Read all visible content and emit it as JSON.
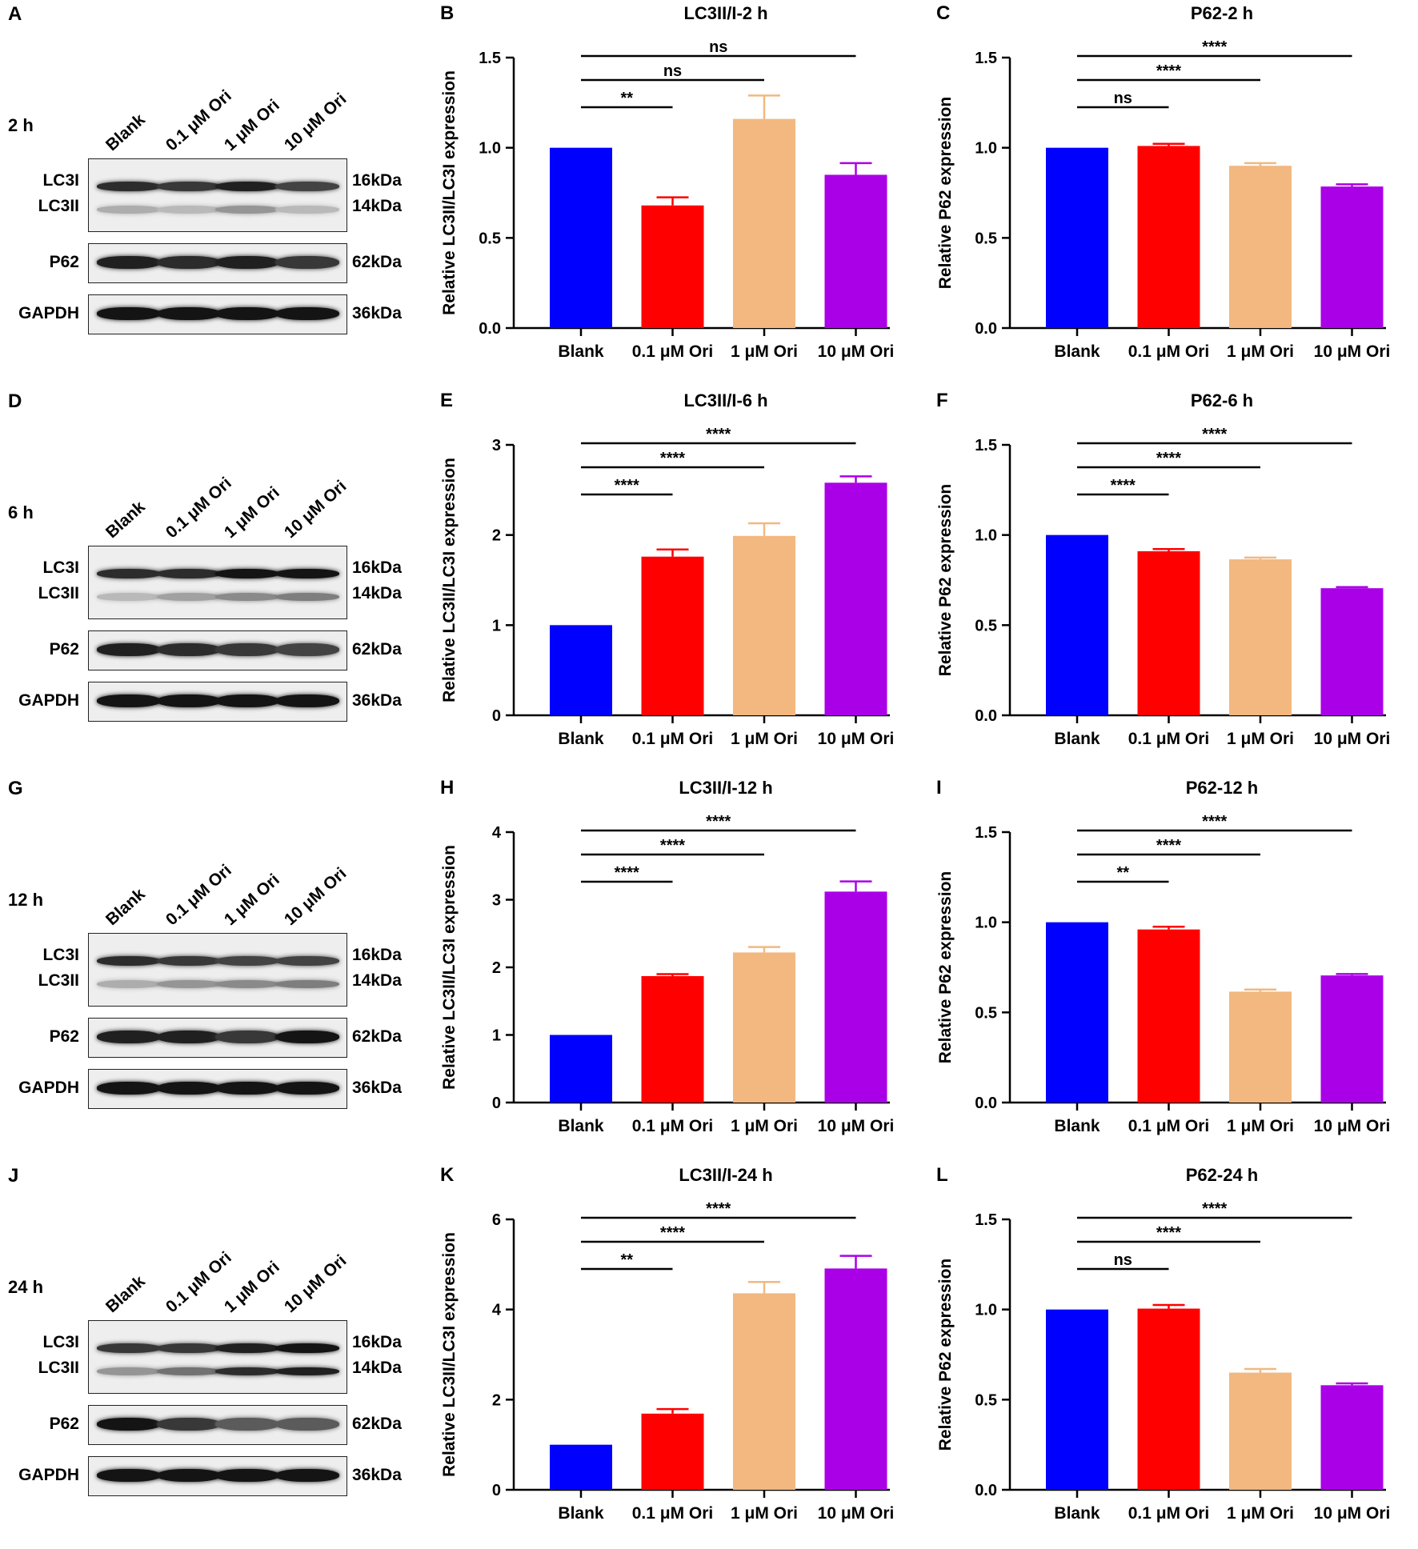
{
  "blots": [
    {
      "letter": "A",
      "time": "2 h",
      "lanes": [
        "Blank",
        "0.1 μM Ori",
        "1 μM Ori",
        "10 μM Ori"
      ],
      "rows": {
        "lc3i": "LC3I",
        "lc3ii": "LC3II",
        "p62": "P62",
        "gapdh": "GAPDH"
      },
      "kda": {
        "lc3i": "16kDa",
        "lc3ii": "14kDa",
        "p62": "62kDa",
        "gapdh": "36kDa"
      }
    },
    {
      "letter": "D",
      "time": "6 h",
      "lanes": [
        "Blank",
        "0.1 μM Ori",
        "1 μM Ori",
        "10 μM Ori"
      ],
      "rows": {
        "lc3i": "LC3I",
        "lc3ii": "LC3II",
        "p62": "P62",
        "gapdh": "GAPDH"
      },
      "kda": {
        "lc3i": "16kDa",
        "lc3ii": "14kDa",
        "p62": "62kDa",
        "gapdh": "36kDa"
      }
    },
    {
      "letter": "G",
      "time": "12 h",
      "lanes": [
        "Blank",
        "0.1 μM Ori",
        "1 μM Ori",
        "10 μM Ori"
      ],
      "rows": {
        "lc3i": "LC3I",
        "lc3ii": "LC3II",
        "p62": "P62",
        "gapdh": "GAPDH"
      },
      "kda": {
        "lc3i": "16kDa",
        "lc3ii": "14kDa",
        "p62": "62kDa",
        "gapdh": "36kDa"
      }
    },
    {
      "letter": "J",
      "time": "24 h",
      "lanes": [
        "Blank",
        "0.1 μM Ori",
        "1 μM Ori",
        "10 μM Ori"
      ],
      "rows": {
        "lc3i": "LC3I",
        "lc3ii": "LC3II",
        "p62": "P62",
        "gapdh": "GAPDH"
      },
      "kda": {
        "lc3i": "16kDa",
        "lc3ii": "14kDa",
        "p62": "62kDa",
        "gapdh": "36kDa"
      }
    }
  ],
  "colors": [
    "#0000ff",
    "#ff0000",
    "#f2b880",
    "#aa00e8"
  ],
  "chart_data": [
    {
      "letter": "B",
      "type": "bar",
      "title": "LC3II/I-2 h",
      "ylabel": "Relative LC3II/LC3I expression",
      "categories": [
        "Blank",
        "0.1 μM Ori",
        "1 μM Ori",
        "10 μM Ori"
      ],
      "values": [
        1.0,
        0.68,
        1.16,
        0.85
      ],
      "errors": [
        0,
        0.045,
        0.13,
        0.065
      ],
      "ylim": [
        0,
        1.5
      ],
      "ticks": [
        "0.0",
        "0.5",
        "1.0",
        "1.5"
      ],
      "tick_values": [
        0,
        0.5,
        1.0,
        1.5
      ],
      "significance": [
        {
          "from": 0,
          "to": 1,
          "label": "**"
        },
        {
          "from": 0,
          "to": 2,
          "label": "ns"
        },
        {
          "from": 0,
          "to": 3,
          "label": "ns"
        }
      ]
    },
    {
      "letter": "C",
      "type": "bar",
      "title": "P62-2 h",
      "ylabel": "Relative P62 expression",
      "categories": [
        "Blank",
        "0.1 μM Ori",
        "1 μM Ori",
        "10 μM Ori"
      ],
      "values": [
        1.0,
        1.01,
        0.9,
        0.785
      ],
      "errors": [
        0,
        0.012,
        0.015,
        0.012
      ],
      "ylim": [
        0,
        1.5
      ],
      "ticks": [
        "0.0",
        "0.5",
        "1.0",
        "1.5"
      ],
      "tick_values": [
        0,
        0.5,
        1.0,
        1.5
      ],
      "significance": [
        {
          "from": 0,
          "to": 1,
          "label": "ns"
        },
        {
          "from": 0,
          "to": 2,
          "label": "****"
        },
        {
          "from": 0,
          "to": 3,
          "label": "****"
        }
      ]
    },
    {
      "letter": "E",
      "type": "bar",
      "title": "LC3II/I-6 h",
      "ylabel": "Relative LC3II/LC3I expression",
      "categories": [
        "Blank",
        "0.1 μM Ori",
        "1 μM Ori",
        "10 μM Ori"
      ],
      "values": [
        1.0,
        1.76,
        1.99,
        2.58
      ],
      "errors": [
        0,
        0.08,
        0.14,
        0.07
      ],
      "ylim": [
        0,
        3
      ],
      "ticks": [
        "0",
        "1",
        "2",
        "3"
      ],
      "tick_values": [
        0,
        1,
        2,
        3
      ],
      "significance": [
        {
          "from": 0,
          "to": 1,
          "label": "****"
        },
        {
          "from": 0,
          "to": 2,
          "label": "****"
        },
        {
          "from": 0,
          "to": 3,
          "label": "****"
        }
      ]
    },
    {
      "letter": "F",
      "type": "bar",
      "title": "P62-6 h",
      "ylabel": "Relative P62 expression",
      "categories": [
        "Blank",
        "0.1 μM Ori",
        "1 μM Ori",
        "10 μM Ori"
      ],
      "values": [
        1.0,
        0.91,
        0.865,
        0.705
      ],
      "errors": [
        0,
        0.012,
        0.01,
        0.006
      ],
      "ylim": [
        0,
        1.5
      ],
      "ticks": [
        "0.0",
        "0.5",
        "1.0",
        "1.5"
      ],
      "tick_values": [
        0,
        0.5,
        1.0,
        1.5
      ],
      "significance": [
        {
          "from": 0,
          "to": 1,
          "label": "****"
        },
        {
          "from": 0,
          "to": 2,
          "label": "****"
        },
        {
          "from": 0,
          "to": 3,
          "label": "****"
        }
      ]
    },
    {
      "letter": "H",
      "type": "bar",
      "title": "LC3II/I-12 h",
      "ylabel": "Relative LC3II/LC3I expression",
      "categories": [
        "Blank",
        "0.1 μM Ori",
        "1 μM Ori",
        "10 μM Ori"
      ],
      "values": [
        1.0,
        1.87,
        2.22,
        3.12
      ],
      "errors": [
        0,
        0.03,
        0.08,
        0.15
      ],
      "ylim": [
        0,
        4
      ],
      "ticks": [
        "0",
        "1",
        "2",
        "3",
        "4"
      ],
      "tick_values": [
        0,
        1,
        2,
        3,
        4
      ],
      "significance": [
        {
          "from": 0,
          "to": 1,
          "label": "****"
        },
        {
          "from": 0,
          "to": 2,
          "label": "****"
        },
        {
          "from": 0,
          "to": 3,
          "label": "****"
        }
      ]
    },
    {
      "letter": "I",
      "type": "bar",
      "title": "P62-12 h",
      "ylabel": "Relative P62 expression",
      "categories": [
        "Blank",
        "0.1 μM Ori",
        "1 μM Ori",
        "10 μM Ori"
      ],
      "values": [
        1.0,
        0.96,
        0.615,
        0.705
      ],
      "errors": [
        0,
        0.015,
        0.012,
        0.008
      ],
      "ylim": [
        0,
        1.5
      ],
      "ticks": [
        "0.0",
        "0.5",
        "1.0",
        "1.5"
      ],
      "tick_values": [
        0,
        0.5,
        1.0,
        1.5
      ],
      "significance": [
        {
          "from": 0,
          "to": 1,
          "label": "**"
        },
        {
          "from": 0,
          "to": 2,
          "label": "****"
        },
        {
          "from": 0,
          "to": 3,
          "label": "****"
        }
      ]
    },
    {
      "letter": "K",
      "type": "bar",
      "title": "LC3II/I-24 h",
      "ylabel": "Relative LC3II/LC3I expression",
      "categories": [
        "Blank",
        "0.1 μM Ori",
        "1 μM Ori",
        "10 μM Ori"
      ],
      "values": [
        1.0,
        1.69,
        4.36,
        4.91
      ],
      "errors": [
        0,
        0.1,
        0.25,
        0.28
      ],
      "ylim": [
        0,
        6
      ],
      "ticks": [
        "0",
        "2",
        "4",
        "6"
      ],
      "tick_values": [
        0,
        2,
        4,
        6
      ],
      "significance": [
        {
          "from": 0,
          "to": 1,
          "label": "**"
        },
        {
          "from": 0,
          "to": 2,
          "label": "****"
        },
        {
          "from": 0,
          "to": 3,
          "label": "****"
        }
      ]
    },
    {
      "letter": "L",
      "type": "bar",
      "title": "P62-24 h",
      "ylabel": "Relative P62 expression",
      "categories": [
        "Blank",
        "0.1 μM Ori",
        "1 μM Ori",
        "10 μM Ori"
      ],
      "values": [
        1.0,
        1.005,
        0.65,
        0.58
      ],
      "errors": [
        0,
        0.02,
        0.02,
        0.01
      ],
      "ylim": [
        0,
        1.5
      ],
      "ticks": [
        "0.0",
        "0.5",
        "1.0",
        "1.5"
      ],
      "tick_values": [
        0,
        0.5,
        1.0,
        1.5
      ],
      "significance": [
        {
          "from": 0,
          "to": 1,
          "label": "ns"
        },
        {
          "from": 0,
          "to": 2,
          "label": "****"
        },
        {
          "from": 0,
          "to": 3,
          "label": "****"
        }
      ]
    }
  ]
}
